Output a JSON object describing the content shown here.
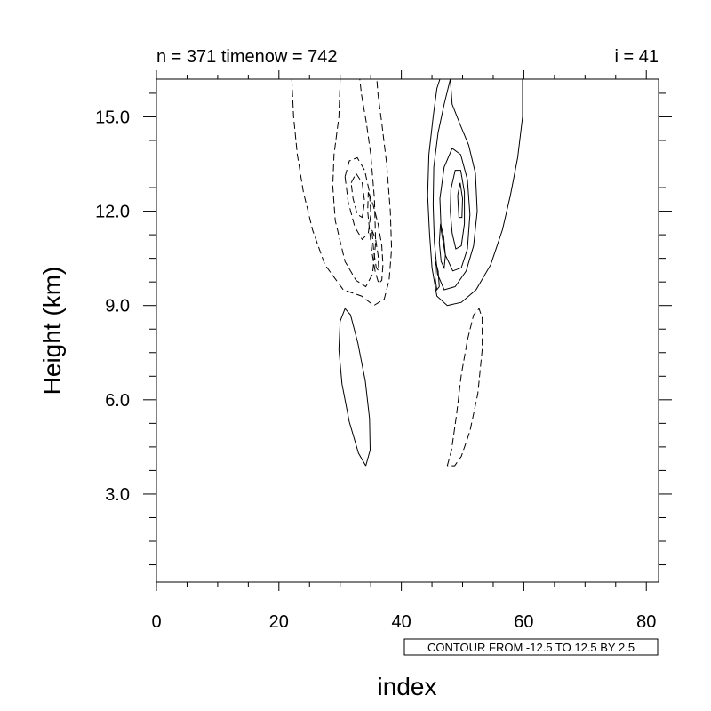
{
  "chart_data": {
    "type": "contour",
    "title_left": "n = 371 timenow = 742",
    "title_right": "i = 41",
    "xlabel": "index",
    "ylabel": "Height (km)",
    "xlim": [
      0,
      82
    ],
    "ylim": [
      0.2,
      16.2
    ],
    "x_ticks": [
      "0",
      "20",
      "40",
      "60",
      "80"
    ],
    "y_ticks": [
      "3.0",
      "6.0",
      "9.0",
      "12.0",
      "15.0"
    ],
    "contour_info": "CONTOUR FROM -12.5 TO 12.5 BY 2.5",
    "contour_levels": {
      "min": -12.5,
      "max": 12.5,
      "step": 2.5
    },
    "negative_line_style": "dashed",
    "positive_line_style": "solid",
    "contours": [
      {
        "sign": "negative",
        "points": [
          [
            22.1,
            16.2
          ],
          [
            22.4,
            15.0
          ],
          [
            23.0,
            13.8
          ],
          [
            24.0,
            12.6
          ],
          [
            25.5,
            11.4
          ],
          [
            27.5,
            10.3
          ],
          [
            30.5,
            9.5
          ],
          [
            33.5,
            9.3
          ],
          [
            35.5,
            9.0
          ],
          [
            37.2,
            9.2
          ],
          [
            38.0,
            9.8
          ],
          [
            38.4,
            10.8
          ],
          [
            38.2,
            12.0
          ],
          [
            37.6,
            13.5
          ],
          [
            36.8,
            14.8
          ],
          [
            36.2,
            15.7
          ],
          [
            36.0,
            16.2
          ]
        ]
      },
      {
        "sign": "negative",
        "points": [
          [
            30.0,
            16.2
          ],
          [
            29.8,
            15.0
          ],
          [
            29.0,
            13.8
          ],
          [
            28.8,
            12.8
          ],
          [
            29.2,
            11.7
          ],
          [
            30.8,
            10.4
          ],
          [
            32.6,
            9.8
          ],
          [
            34.2,
            9.6
          ],
          [
            35.3,
            10.0
          ],
          [
            35.8,
            11.0
          ],
          [
            35.6,
            12.4
          ],
          [
            35.0,
            13.8
          ],
          [
            34.3,
            14.8
          ],
          [
            33.5,
            15.7
          ],
          [
            33.2,
            16.2
          ]
        ]
      },
      {
        "sign": "negative",
        "points": [
          [
            30.8,
            13.1
          ],
          [
            31.5,
            13.6
          ],
          [
            32.8,
            13.7
          ],
          [
            34.0,
            13.3
          ],
          [
            34.8,
            12.6
          ],
          [
            35.0,
            11.9
          ],
          [
            34.6,
            11.3
          ],
          [
            33.6,
            11.1
          ],
          [
            32.4,
            11.5
          ],
          [
            31.3,
            12.3
          ],
          [
            30.8,
            13.1
          ]
        ]
      },
      {
        "sign": "negative",
        "points": [
          [
            31.8,
            12.9
          ],
          [
            32.6,
            13.2
          ],
          [
            33.6,
            12.9
          ],
          [
            34.0,
            12.3
          ],
          [
            33.6,
            11.8
          ],
          [
            32.8,
            11.9
          ],
          [
            32.1,
            12.4
          ],
          [
            31.8,
            12.9
          ]
        ]
      },
      {
        "sign": "negative",
        "points": [
          [
            34.6,
            12.6
          ],
          [
            35.4,
            12.2
          ],
          [
            36.2,
            11.6
          ],
          [
            36.8,
            10.9
          ],
          [
            37.0,
            10.3
          ],
          [
            36.8,
            9.8
          ],
          [
            36.3,
            9.7
          ],
          [
            35.7,
            10.1
          ],
          [
            35.2,
            10.7
          ],
          [
            34.8,
            11.4
          ],
          [
            34.5,
            12.0
          ],
          [
            34.6,
            12.6
          ]
        ]
      },
      {
        "sign": "negative",
        "points": [
          [
            35.2,
            11.4
          ],
          [
            35.8,
            11.1
          ],
          [
            36.2,
            10.6
          ],
          [
            36.3,
            10.1
          ],
          [
            35.9,
            10.2
          ],
          [
            35.5,
            10.7
          ],
          [
            35.2,
            11.4
          ]
        ]
      },
      {
        "sign": "negative",
        "points": [
          [
            47.5,
            3.9
          ],
          [
            48.2,
            4.4
          ],
          [
            49.0,
            5.5
          ],
          [
            49.8,
            6.8
          ],
          [
            50.8,
            7.9
          ],
          [
            51.8,
            8.7
          ],
          [
            52.7,
            8.9
          ],
          [
            53.2,
            8.6
          ],
          [
            53.2,
            7.6
          ],
          [
            52.5,
            6.2
          ],
          [
            51.2,
            5.0
          ],
          [
            49.8,
            4.2
          ],
          [
            48.7,
            3.9
          ],
          [
            47.5,
            3.9
          ]
        ]
      },
      {
        "sign": "positive",
        "points": [
          [
            59.8,
            16.2
          ],
          [
            59.8,
            15.0
          ],
          [
            59.0,
            13.7
          ],
          [
            57.8,
            12.5
          ],
          [
            56.5,
            11.4
          ],
          [
            54.6,
            10.3
          ],
          [
            52.2,
            9.5
          ],
          [
            49.8,
            9.1
          ],
          [
            47.5,
            9.0
          ],
          [
            45.8,
            9.3
          ],
          [
            45.0,
            10.2
          ],
          [
            44.6,
            11.3
          ],
          [
            44.3,
            12.5
          ],
          [
            44.5,
            13.8
          ],
          [
            45.2,
            15.0
          ],
          [
            45.8,
            15.9
          ],
          [
            46.3,
            16.2
          ]
        ]
      },
      {
        "sign": "positive",
        "points": [
          [
            48.0,
            16.2
          ],
          [
            48.3,
            15.4
          ],
          [
            49.5,
            14.8
          ],
          [
            51.0,
            14.1
          ],
          [
            52.1,
            13.2
          ],
          [
            52.4,
            12.0
          ],
          [
            51.8,
            10.9
          ],
          [
            50.6,
            10.1
          ],
          [
            48.8,
            9.6
          ],
          [
            47.0,
            9.5
          ],
          [
            45.9,
            10.0
          ],
          [
            45.4,
            11.0
          ],
          [
            45.2,
            12.2
          ],
          [
            45.3,
            13.4
          ],
          [
            46.0,
            14.5
          ],
          [
            47.0,
            15.4
          ],
          [
            48.0,
            16.2
          ]
        ]
      },
      {
        "sign": "positive",
        "points": [
          [
            46.3,
            12.4
          ],
          [
            47.0,
            13.4
          ],
          [
            48.3,
            14.0
          ],
          [
            49.7,
            13.8
          ],
          [
            50.8,
            13.0
          ],
          [
            51.2,
            11.9
          ],
          [
            50.8,
            10.8
          ],
          [
            49.8,
            10.2
          ],
          [
            48.4,
            10.1
          ],
          [
            47.2,
            10.6
          ],
          [
            46.5,
            11.4
          ],
          [
            46.3,
            12.4
          ]
        ]
      },
      {
        "sign": "positive",
        "points": [
          [
            48.1,
            12.7
          ],
          [
            48.8,
            13.3
          ],
          [
            49.7,
            13.3
          ],
          [
            50.3,
            12.6
          ],
          [
            50.3,
            11.6
          ],
          [
            49.8,
            10.9
          ],
          [
            48.9,
            10.8
          ],
          [
            48.3,
            11.3
          ],
          [
            48.0,
            12.0
          ],
          [
            48.1,
            12.7
          ]
        ]
      },
      {
        "sign": "positive",
        "points": [
          [
            49.2,
            12.5
          ],
          [
            49.6,
            12.9
          ],
          [
            50.0,
            12.4
          ],
          [
            49.9,
            11.8
          ],
          [
            49.4,
            11.8
          ],
          [
            49.2,
            12.5
          ]
        ]
      },
      {
        "sign": "positive",
        "points": [
          [
            46.4,
            11.6
          ],
          [
            46.9,
            11.2
          ],
          [
            47.2,
            10.6
          ],
          [
            47.0,
            10.2
          ],
          [
            46.5,
            10.4
          ],
          [
            46.2,
            11.0
          ],
          [
            46.4,
            11.6
          ]
        ]
      },
      {
        "sign": "positive",
        "points": [
          [
            45.6,
            10.4
          ],
          [
            46.0,
            10.1
          ],
          [
            46.2,
            9.6
          ],
          [
            45.8,
            9.5
          ],
          [
            45.5,
            9.9
          ],
          [
            45.6,
            10.4
          ]
        ]
      },
      {
        "sign": "positive",
        "points": [
          [
            34.2,
            3.9
          ],
          [
            33.0,
            4.3
          ],
          [
            31.5,
            5.3
          ],
          [
            30.3,
            6.5
          ],
          [
            29.8,
            7.6
          ],
          [
            30.0,
            8.5
          ],
          [
            30.8,
            8.9
          ],
          [
            31.7,
            8.7
          ],
          [
            32.9,
            7.8
          ],
          [
            34.1,
            6.6
          ],
          [
            34.8,
            5.4
          ],
          [
            34.9,
            4.4
          ],
          [
            34.2,
            3.9
          ]
        ]
      }
    ]
  }
}
